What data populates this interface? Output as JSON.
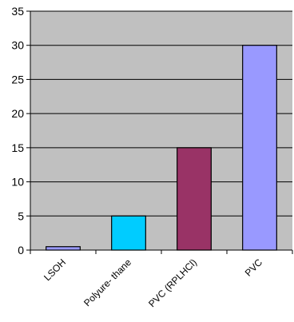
{
  "chart_data": {
    "type": "bar",
    "categories": [
      "LSOH",
      "Polyure- thane",
      "PVC (RPLHCl)",
      "PVC"
    ],
    "values": [
      0.5,
      5,
      15,
      30
    ],
    "ylim": [
      0,
      35
    ],
    "yticks": [
      0,
      5,
      10,
      15,
      20,
      25,
      30,
      35
    ],
    "grid": true,
    "legend": "none",
    "plot_background": "#c0c0c0",
    "bar_colors": [
      "#9999ff",
      "#00ccff",
      "#993366",
      "#9999ff"
    ],
    "gridline_color": "#000000",
    "title": "",
    "xlabel": "",
    "ylabel": ""
  }
}
